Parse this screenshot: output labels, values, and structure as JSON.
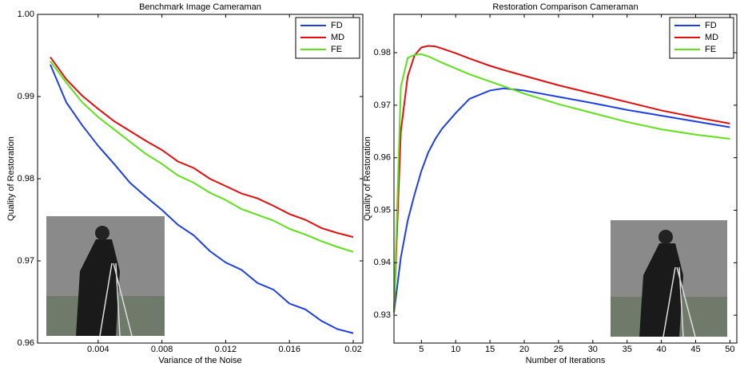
{
  "chart_data": [
    {
      "type": "line",
      "title": "Benchmark Image Cameraman",
      "x_label": "Variance of the Noise",
      "y_label": "Quality of Restoration",
      "x": [
        0.001,
        0.002,
        0.003,
        0.004,
        0.005,
        0.006,
        0.007,
        0.008,
        0.009,
        0.01,
        0.011,
        0.012,
        0.013,
        0.014,
        0.015,
        0.016,
        0.017,
        0.018,
        0.019,
        0.02
      ],
      "series": [
        {
          "name": "FD",
          "color": "#1f3fe0",
          "values": [
            0.9939,
            0.9893,
            0.9865,
            0.984,
            0.9818,
            0.9795,
            0.9778,
            0.9762,
            0.9744,
            0.9731,
            0.9712,
            0.9698,
            0.9689,
            0.9673,
            0.9665,
            0.9648,
            0.9641,
            0.9627,
            0.9617,
            0.9612
          ]
        },
        {
          "name": "MD",
          "color": "#e01010",
          "values": [
            0.9948,
            0.9921,
            0.9901,
            0.9885,
            0.987,
            0.9858,
            0.9846,
            0.9835,
            0.9821,
            0.9813,
            0.98,
            0.9791,
            0.9782,
            0.9776,
            0.9767,
            0.9757,
            0.975,
            0.974,
            0.9734,
            0.9729
          ]
        },
        {
          "name": "FE",
          "color": "#5ee01a",
          "values": [
            0.9943,
            0.9917,
            0.9893,
            0.9875,
            0.986,
            0.9845,
            0.983,
            0.9818,
            0.9804,
            0.9795,
            0.9783,
            0.9774,
            0.9763,
            0.9756,
            0.9749,
            0.9739,
            0.9732,
            0.9724,
            0.9717,
            0.9711
          ]
        }
      ],
      "xlim": [
        0.0002,
        0.0206
      ],
      "xticks": [
        0.004,
        0.008,
        0.012,
        0.016,
        0.02
      ],
      "ylim": [
        0.96,
        1
      ],
      "yticks": [
        0.96,
        0.97,
        0.98,
        0.99,
        {
          "value": 1,
          "label": "1.00"
        }
      ],
      "legend": "top-right"
    },
    {
      "type": "line",
      "title": "Restoration Comparison Cameraman",
      "x_label": "Number of Iterations",
      "y_label": "Quality of Restoration",
      "x": [
        1,
        2,
        3,
        4,
        5,
        6,
        7,
        8,
        10,
        12,
        15,
        17,
        20,
        25,
        30,
        35,
        40,
        45,
        50
      ],
      "series": [
        {
          "name": "FD",
          "color": "#1f3fe0",
          "values": [
            0.9305,
            0.941,
            0.948,
            0.953,
            0.9575,
            0.961,
            0.9635,
            0.9655,
            0.9685,
            0.9712,
            0.9728,
            0.9732,
            0.9728,
            0.9716,
            0.9704,
            0.9691,
            0.968,
            0.9669,
            0.9658
          ]
        },
        {
          "name": "MD",
          "color": "#e01010",
          "values": [
            0.9305,
            0.965,
            0.9755,
            0.9795,
            0.981,
            0.9813,
            0.9812,
            0.9808,
            0.9799,
            0.9789,
            0.9775,
            0.9767,
            0.9756,
            0.9738,
            0.9722,
            0.9706,
            0.969,
            0.9677,
            0.9665
          ]
        },
        {
          "name": "FE",
          "color": "#5ee01a",
          "values": [
            0.9305,
            0.9735,
            0.979,
            0.9796,
            0.9797,
            0.9793,
            0.9787,
            0.9781,
            0.977,
            0.9759,
            0.9745,
            0.9736,
            0.9722,
            0.9702,
            0.9685,
            0.9668,
            0.9654,
            0.9644,
            0.9636
          ]
        }
      ],
      "xlim": [
        1,
        51
      ],
      "xticks": [
        5,
        10,
        15,
        20,
        25,
        30,
        35,
        40,
        45,
        50
      ],
      "ylim": [
        0.9247,
        0.9873
      ],
      "yticks": [
        0.93,
        0.94,
        0.95,
        0.96,
        0.97,
        0.98
      ],
      "legend": "top-right"
    }
  ]
}
